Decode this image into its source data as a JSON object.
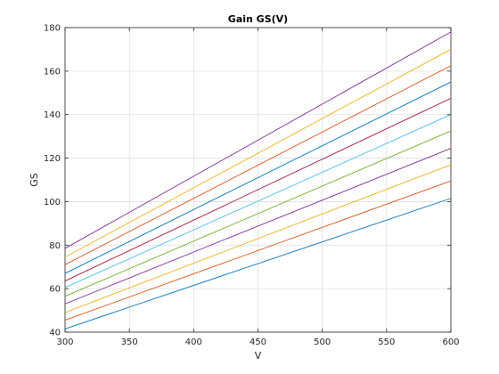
{
  "chart_data": {
    "type": "line",
    "title": "Gain GS(V)",
    "xlabel": "V",
    "ylabel": "GS",
    "xlim": [
      300,
      600
    ],
    "ylim": [
      40,
      180
    ],
    "xticks": [
      300,
      350,
      400,
      450,
      500,
      550,
      600
    ],
    "yticks": [
      40,
      60,
      80,
      100,
      120,
      140,
      160,
      180
    ],
    "grid": true,
    "legend": "none",
    "x": [
      300,
      600
    ],
    "series": [
      {
        "color": "#0072BD",
        "values": [
          41.5,
          101.5
        ]
      },
      {
        "color": "#D95319",
        "values": [
          45.5,
          109.5
        ]
      },
      {
        "color": "#EDB120",
        "values": [
          49.0,
          117.0
        ]
      },
      {
        "color": "#7E2F8E",
        "values": [
          53.0,
          124.5
        ]
      },
      {
        "color": "#77AC30",
        "values": [
          56.5,
          132.5
        ]
      },
      {
        "color": "#4DBEEE",
        "values": [
          60.5,
          140.0
        ]
      },
      {
        "color": "#A2142F",
        "values": [
          63.5,
          147.5
        ]
      },
      {
        "color": "#0072BD",
        "values": [
          67.0,
          155.0
        ]
      },
      {
        "color": "#D95319",
        "values": [
          71.0,
          162.5
        ]
      },
      {
        "color": "#EDB120",
        "values": [
          74.5,
          170.0
        ]
      },
      {
        "color": "#7E2F8E",
        "values": [
          78.5,
          178.0
        ]
      }
    ]
  }
}
